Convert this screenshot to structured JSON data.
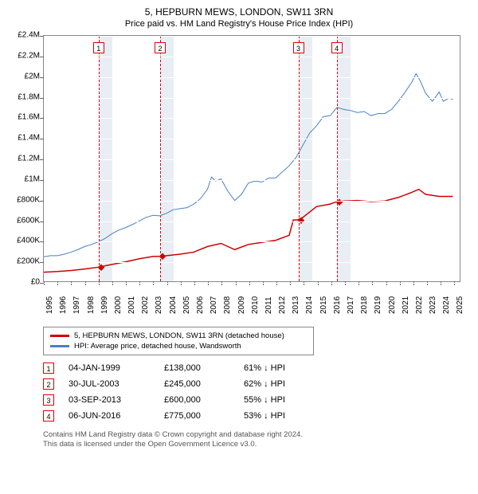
{
  "title": "5, HEPBURN MEWS, LONDON, SW11 3RN",
  "subtitle": "Price paid vs. HM Land Registry's House Price Index (HPI)",
  "chart": {
    "type": "line",
    "xmin": 1995,
    "xmax": 2025.5,
    "ymin": 0,
    "ymax": 2400000,
    "yticks": [
      0,
      200000,
      400000,
      600000,
      800000,
      1000000,
      1200000,
      1400000,
      1600000,
      1800000,
      2000000,
      2200000,
      2400000
    ],
    "ylabels": [
      "£0",
      "£200K",
      "£400K",
      "£600K",
      "£800K",
      "£1M",
      "£1.2M",
      "£1.4M",
      "£1.6M",
      "£1.8M",
      "£2M",
      "£2.2M",
      "£2.4M"
    ],
    "xticks": [
      1995,
      1996,
      1997,
      1998,
      1999,
      2000,
      2001,
      2002,
      2003,
      2004,
      2005,
      2006,
      2007,
      2008,
      2009,
      2010,
      2011,
      2012,
      2013,
      2014,
      2015,
      2016,
      2017,
      2018,
      2019,
      2020,
      2021,
      2022,
      2023,
      2024,
      2025
    ],
    "grid_color": "#ffffff",
    "background_color": "#ffffff",
    "shade_color": "#e8eef4",
    "shaded_ranges": [
      [
        1999.0,
        2000.0
      ],
      [
        2003.5,
        2004.5
      ],
      [
        2013.6,
        2014.6
      ],
      [
        2016.4,
        2017.4
      ]
    ],
    "events": [
      {
        "num": "1",
        "x": 1999.0
      },
      {
        "num": "2",
        "x": 2003.5
      },
      {
        "num": "3",
        "x": 2013.6
      },
      {
        "num": "4",
        "x": 2016.4
      }
    ],
    "event_line_color": "#d00000",
    "hpi_line": {
      "color": "#4a7fc4",
      "width": 1,
      "points": [
        [
          1995.0,
          240000
        ],
        [
          1995.5,
          250000
        ],
        [
          1996.0,
          250000
        ],
        [
          1996.5,
          265000
        ],
        [
          1997.0,
          285000
        ],
        [
          1997.5,
          310000
        ],
        [
          1998.0,
          340000
        ],
        [
          1998.5,
          360000
        ],
        [
          1999.0,
          385000
        ],
        [
          1999.5,
          420000
        ],
        [
          2000.0,
          465000
        ],
        [
          2000.5,
          500000
        ],
        [
          2001.0,
          525000
        ],
        [
          2001.5,
          555000
        ],
        [
          2002.0,
          590000
        ],
        [
          2002.5,
          625000
        ],
        [
          2003.0,
          645000
        ],
        [
          2003.5,
          640000
        ],
        [
          2004.0,
          665000
        ],
        [
          2004.5,
          700000
        ],
        [
          2005.0,
          710000
        ],
        [
          2005.5,
          720000
        ],
        [
          2006.0,
          755000
        ],
        [
          2006.5,
          810000
        ],
        [
          2007.0,
          900000
        ],
        [
          2007.3,
          1020000
        ],
        [
          2007.6,
          980000
        ],
        [
          2008.0,
          1000000
        ],
        [
          2008.5,
          880000
        ],
        [
          2009.0,
          790000
        ],
        [
          2009.5,
          850000
        ],
        [
          2010.0,
          960000
        ],
        [
          2010.5,
          980000
        ],
        [
          2011.0,
          970000
        ],
        [
          2011.5,
          1010000
        ],
        [
          2012.0,
          1010000
        ],
        [
          2012.5,
          1070000
        ],
        [
          2013.0,
          1130000
        ],
        [
          2013.5,
          1210000
        ],
        [
          2014.0,
          1330000
        ],
        [
          2014.5,
          1450000
        ],
        [
          2015.0,
          1520000
        ],
        [
          2015.5,
          1610000
        ],
        [
          2016.0,
          1620000
        ],
        [
          2016.5,
          1700000
        ],
        [
          2017.0,
          1680000
        ],
        [
          2017.5,
          1670000
        ],
        [
          2018.0,
          1650000
        ],
        [
          2018.5,
          1660000
        ],
        [
          2019.0,
          1620000
        ],
        [
          2019.5,
          1640000
        ],
        [
          2020.0,
          1640000
        ],
        [
          2020.5,
          1680000
        ],
        [
          2021.0,
          1760000
        ],
        [
          2021.5,
          1850000
        ],
        [
          2022.0,
          1950000
        ],
        [
          2022.3,
          2030000
        ],
        [
          2022.6,
          1960000
        ],
        [
          2023.0,
          1840000
        ],
        [
          2023.5,
          1760000
        ],
        [
          2024.0,
          1850000
        ],
        [
          2024.3,
          1760000
        ],
        [
          2024.7,
          1790000
        ],
        [
          2025.0,
          1780000
        ]
      ]
    },
    "price_line": {
      "color": "#d00000",
      "width": 1.5,
      "points": [
        [
          1995.0,
          88000
        ],
        [
          1996.0,
          95000
        ],
        [
          1997.0,
          105000
        ],
        [
          1998.0,
          120000
        ],
        [
          1999.0,
          138000
        ],
        [
          2000.0,
          165000
        ],
        [
          2001.0,
          190000
        ],
        [
          2002.0,
          220000
        ],
        [
          2003.0,
          242000
        ],
        [
          2003.5,
          245000
        ],
        [
          2004.0,
          250000
        ],
        [
          2005.0,
          265000
        ],
        [
          2006.0,
          285000
        ],
        [
          2007.0,
          340000
        ],
        [
          2008.0,
          370000
        ],
        [
          2008.5,
          340000
        ],
        [
          2009.0,
          310000
        ],
        [
          2010.0,
          360000
        ],
        [
          2011.0,
          380000
        ],
        [
          2012.0,
          400000
        ],
        [
          2013.0,
          450000
        ],
        [
          2013.3,
          600000
        ],
        [
          2013.6,
          600000
        ],
        [
          2014.0,
          625000
        ],
        [
          2015.0,
          730000
        ],
        [
          2016.0,
          755000
        ],
        [
          2016.4,
          775000
        ],
        [
          2017.0,
          785000
        ],
        [
          2018.0,
          790000
        ],
        [
          2019.0,
          780000
        ],
        [
          2020.0,
          785000
        ],
        [
          2021.0,
          820000
        ],
        [
          2022.0,
          870000
        ],
        [
          2022.5,
          900000
        ],
        [
          2023.0,
          850000
        ],
        [
          2024.0,
          830000
        ],
        [
          2025.0,
          830000
        ]
      ],
      "markers": [
        [
          1999.0,
          138000
        ],
        [
          2003.5,
          245000
        ],
        [
          2013.6,
          600000
        ],
        [
          2016.4,
          775000
        ]
      ]
    }
  },
  "legend": {
    "items": [
      {
        "color": "#d00000",
        "label": "5, HEPBURN MEWS, LONDON, SW11 3RN (detached house)"
      },
      {
        "color": "#4a7fc4",
        "label": "HPI: Average price, detached house, Wandsworth"
      }
    ]
  },
  "sales": [
    {
      "num": "1",
      "date": "04-JAN-1999",
      "price": "£138,000",
      "hpi": "61% ↓ HPI"
    },
    {
      "num": "2",
      "date": "30-JUL-2003",
      "price": "£245,000",
      "hpi": "62% ↓ HPI"
    },
    {
      "num": "3",
      "date": "03-SEP-2013",
      "price": "£600,000",
      "hpi": "55% ↓ HPI"
    },
    {
      "num": "4",
      "date": "06-JUN-2016",
      "price": "£775,000",
      "hpi": "53% ↓ HPI"
    }
  ],
  "footer": {
    "line1": "Contains HM Land Registry data © Crown copyright and database right 2024.",
    "line2": "This data is licensed under the Open Government Licence v3.0."
  }
}
